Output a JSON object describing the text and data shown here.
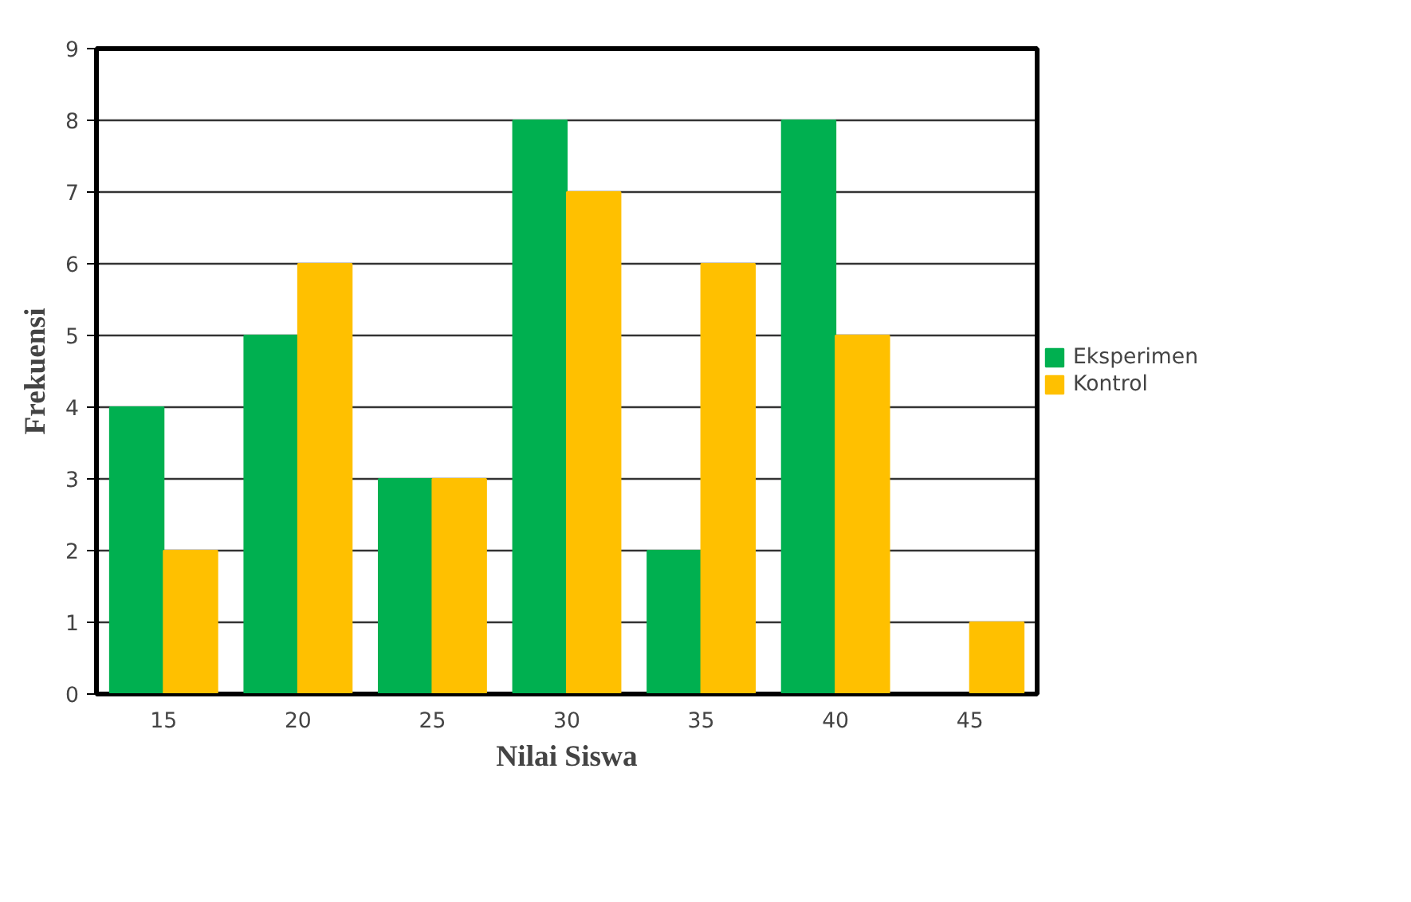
{
  "chart_data": {
    "type": "bar",
    "xlabel": "Nilai Siswa",
    "ylabel": "Frekuensi",
    "categories": [
      "15",
      "20",
      "25",
      "30",
      "35",
      "40",
      "45"
    ],
    "series": [
      {
        "name": "Eksperimen",
        "color": "#00b050",
        "values": [
          4,
          5,
          3,
          8,
          2,
          8,
          0
        ]
      },
      {
        "name": "Kontrol",
        "color": "#ffc000",
        "values": [
          2,
          6,
          3,
          7,
          6,
          5,
          1
        ]
      }
    ],
    "ylim": [
      0,
      9
    ],
    "yticks": [
      0,
      1,
      2,
      3,
      4,
      5,
      6,
      7,
      8,
      9
    ],
    "grid": "y",
    "legend": "right"
  }
}
